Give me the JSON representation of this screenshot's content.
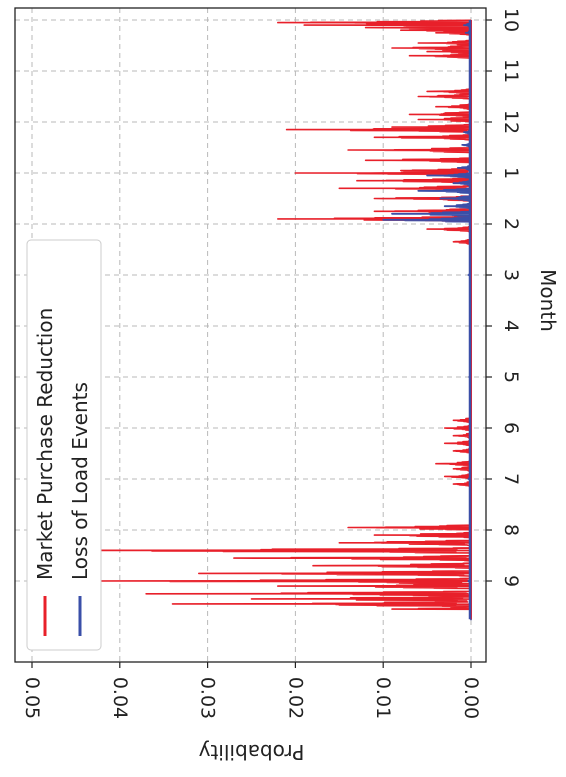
{
  "chart_data": {
    "type": "line",
    "orientation": "rotated 90 degrees clockwise",
    "xlabel": "Month",
    "ylabel": "Probability",
    "x_ticks": [
      "10",
      "11",
      "12",
      "1",
      "2",
      "3",
      "4",
      "5",
      "6",
      "7",
      "8",
      "9"
    ],
    "y_ticks": [
      "0.00",
      "0.01",
      "0.02",
      "0.03",
      "0.04",
      "0.05"
    ],
    "ylim": [
      0,
      0.052
    ],
    "grid": true,
    "legend_placement": "upper-left",
    "series": [
      {
        "name": "Market Purchase Reduction",
        "color": "#e8202a",
        "bursts": [
          {
            "x0": 0.0,
            "x1": 0.3,
            "peaks": [
              [
                0.05,
                0.022
              ],
              [
                0.1,
                0.019
              ],
              [
                0.15,
                0.012
              ],
              [
                0.2,
                0.008
              ],
              [
                0.25,
                0.004
              ]
            ]
          },
          {
            "x0": 0.35,
            "x1": 0.75,
            "peaks": [
              [
                0.45,
                0.006
              ],
              [
                0.55,
                0.009
              ],
              [
                0.62,
                0.005
              ],
              [
                0.7,
                0.007
              ]
            ]
          },
          {
            "x0": 1.35,
            "x1": 1.55,
            "peaks": [
              [
                1.4,
                0.005
              ],
              [
                1.5,
                0.006
              ]
            ]
          },
          {
            "x0": 1.6,
            "x1": 2.0,
            "peaks": [
              [
                1.7,
                0.004
              ],
              [
                1.85,
                0.007
              ],
              [
                1.95,
                0.006
              ]
            ]
          },
          {
            "x0": 2.0,
            "x1": 4.5,
            "peaks": [
              [
                2.1,
                0.009
              ],
              [
                2.15,
                0.021
              ],
              [
                2.3,
                0.011
              ],
              [
                2.55,
                0.014
              ],
              [
                2.75,
                0.012
              ],
              [
                2.95,
                0.008
              ],
              [
                3.0,
                0.02
              ],
              [
                3.15,
                0.013
              ],
              [
                3.3,
                0.015
              ],
              [
                3.5,
                0.011
              ],
              [
                3.75,
                0.011
              ],
              [
                3.9,
                0.022
              ],
              [
                4.1,
                0.005
              ],
              [
                4.35,
                0.002
              ]
            ]
          },
          {
            "x0": 7.75,
            "x1": 8.5,
            "peaks": [
              [
                7.85,
                0.002
              ],
              [
                8.0,
                0.003
              ],
              [
                8.15,
                0.002
              ],
              [
                8.3,
                0.003
              ],
              [
                8.45,
                0.002
              ]
            ]
          },
          {
            "x0": 8.6,
            "x1": 9.15,
            "peaks": [
              [
                8.7,
                0.004
              ],
              [
                8.8,
                0.002
              ],
              [
                8.95,
                0.003
              ],
              [
                9.1,
                0.002
              ]
            ]
          },
          {
            "x0": 9.9,
            "x1": 11.55,
            "peaks": [
              [
                9.95,
                0.014
              ],
              [
                10.1,
                0.011
              ],
              [
                10.25,
                0.015
              ],
              [
                10.4,
                0.05
              ],
              [
                10.55,
                0.027
              ],
              [
                10.7,
                0.018
              ],
              [
                10.85,
                0.031
              ],
              [
                11.0,
                0.044
              ],
              [
                11.1,
                0.022
              ],
              [
                11.25,
                0.037
              ],
              [
                11.35,
                0.025
              ],
              [
                11.45,
                0.034
              ],
              [
                11.55,
                0.009
              ]
            ]
          }
        ]
      },
      {
        "name": "Loss of Load Events",
        "color": "#3a4fa8",
        "bursts": [
          {
            "x0": 0.0,
            "x1": 0.35,
            "peaks": [
              [
                0.1,
                0.0008
              ],
              [
                0.25,
                0.0006
              ]
            ]
          },
          {
            "x0": 2.0,
            "x1": 2.6,
            "peaks": [
              [
                2.2,
                0.0008
              ],
              [
                2.45,
                0.001
              ]
            ]
          },
          {
            "x0": 2.8,
            "x1": 3.95,
            "peaks": [
              [
                2.9,
                0.0015
              ],
              [
                3.05,
                0.005
              ],
              [
                3.2,
                0.002
              ],
              [
                3.35,
                0.006
              ],
              [
                3.5,
                0.0035
              ],
              [
                3.65,
                0.003
              ],
              [
                3.8,
                0.009
              ],
              [
                3.92,
                0.01
              ]
            ]
          },
          {
            "x0": 4.0,
            "x1": 11.75,
            "peaks": [
              [
                5.0,
                0.0003
              ],
              [
                7.0,
                0.0002
              ],
              [
                9.0,
                0.0003
              ],
              [
                11.0,
                0.0003
              ]
            ]
          }
        ]
      }
    ]
  }
}
